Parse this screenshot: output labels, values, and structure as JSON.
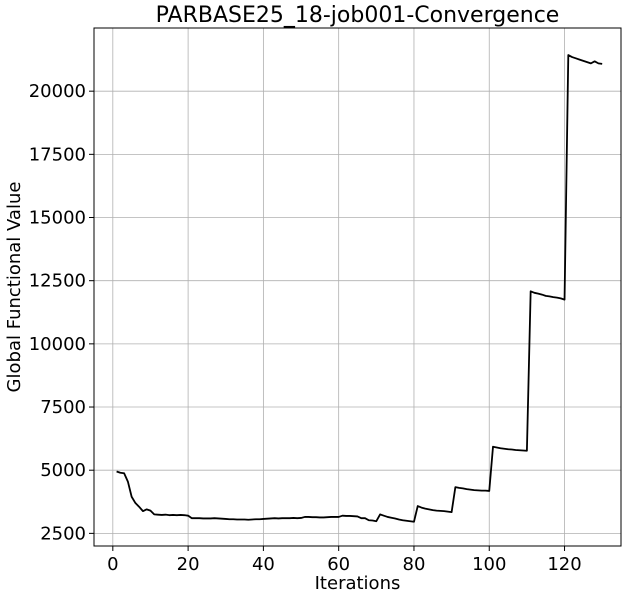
{
  "chart_data": {
    "type": "line",
    "title": "PARBASE25_18-job001-Convergence",
    "xlabel": "Iterations",
    "ylabel": "Global Functional Value",
    "xlim": [
      -5,
      135
    ],
    "ylim": [
      2000,
      22500
    ],
    "xticks": [
      0,
      20,
      40,
      60,
      80,
      100,
      120
    ],
    "yticks": [
      2500,
      5000,
      7500,
      10000,
      12500,
      15000,
      17500,
      20000
    ],
    "grid": true,
    "line_color": "#000000",
    "series": [
      {
        "x": [
          1,
          2,
          3,
          4,
          5,
          6,
          7,
          8,
          9,
          10,
          11,
          12,
          13,
          14,
          15,
          16,
          17,
          18,
          19,
          20,
          21,
          22,
          23,
          24,
          25,
          26,
          27,
          28,
          29,
          30,
          31,
          32,
          33,
          34,
          35,
          36,
          37,
          38,
          39,
          40,
          41,
          42,
          43,
          44,
          45,
          46,
          47,
          48,
          49,
          50,
          51,
          52,
          53,
          54,
          55,
          56,
          57,
          58,
          59,
          60,
          61,
          62,
          63,
          64,
          65,
          66,
          67,
          68,
          69,
          70,
          71,
          72,
          73,
          74,
          75,
          76,
          77,
          78,
          79,
          80,
          81,
          82,
          83,
          84,
          85,
          86,
          87,
          88,
          89,
          90,
          91,
          92,
          93,
          94,
          95,
          96,
          97,
          98,
          99,
          100,
          101,
          102,
          103,
          104,
          105,
          106,
          107,
          108,
          109,
          110,
          111,
          112,
          113,
          114,
          115,
          116,
          117,
          118,
          119,
          120,
          121,
          122,
          123,
          124,
          125,
          126,
          127,
          128,
          129,
          130
        ],
        "y": [
          4950,
          4900,
          4880,
          4550,
          3950,
          3700,
          3550,
          3380,
          3450,
          3400,
          3250,
          3240,
          3230,
          3240,
          3220,
          3230,
          3220,
          3230,
          3220,
          3200,
          3100,
          3100,
          3100,
          3090,
          3090,
          3090,
          3100,
          3090,
          3080,
          3070,
          3060,
          3060,
          3050,
          3050,
          3050,
          3040,
          3050,
          3060,
          3060,
          3070,
          3080,
          3090,
          3100,
          3090,
          3100,
          3100,
          3100,
          3110,
          3100,
          3110,
          3150,
          3150,
          3140,
          3140,
          3130,
          3130,
          3140,
          3150,
          3150,
          3150,
          3200,
          3190,
          3190,
          3180,
          3170,
          3100,
          3100,
          3020,
          3010,
          2980,
          3250,
          3200,
          3150,
          3120,
          3090,
          3050,
          3020,
          3000,
          2980,
          2960,
          3580,
          3520,
          3480,
          3450,
          3420,
          3400,
          3390,
          3380,
          3360,
          3340,
          4330,
          4300,
          4280,
          4250,
          4230,
          4210,
          4200,
          4190,
          4190,
          4180,
          5930,
          5900,
          5870,
          5850,
          5830,
          5820,
          5800,
          5790,
          5780,
          5770,
          12080,
          12020,
          11990,
          11950,
          11900,
          11880,
          11850,
          11830,
          11800,
          11750,
          21430,
          21350,
          21300,
          21250,
          21200,
          21150,
          21100,
          21180,
          21100,
          21080
        ]
      }
    ]
  }
}
